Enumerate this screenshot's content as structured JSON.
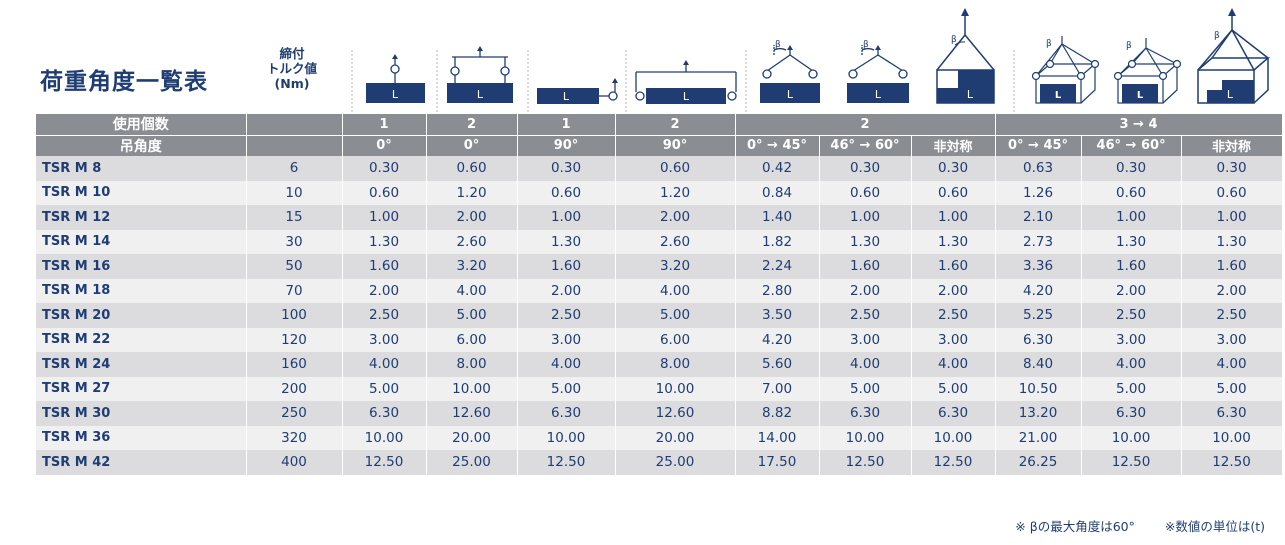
{
  "title": "荷重角度一覧表",
  "torque_header": {
    "line1": "締付",
    "line2": "トルク値",
    "line3": "(Nm)"
  },
  "icon_labels": {
    "load": "L",
    "angle": "β"
  },
  "header_count": {
    "label": "使用個数",
    "groups": [
      "1",
      "2",
      "1",
      "2",
      "2",
      "3 → 4"
    ]
  },
  "header_angle": {
    "label": "吊角度",
    "cols": [
      "0°",
      "0°",
      "90°",
      "90°",
      "0° → 45°",
      "46° → 60°",
      "非対称",
      "0° → 45°",
      "46° → 60°",
      "非対称"
    ]
  },
  "rows": [
    {
      "name": "TSR M 8",
      "torque": "6",
      "v": [
        "0.30",
        "0.60",
        "0.30",
        "0.60",
        "0.42",
        "0.30",
        "0.30",
        "0.63",
        "0.30",
        "0.30"
      ]
    },
    {
      "name": "TSR M 10",
      "torque": "10",
      "v": [
        "0.60",
        "1.20",
        "0.60",
        "1.20",
        "0.84",
        "0.60",
        "0.60",
        "1.26",
        "0.60",
        "0.60"
      ]
    },
    {
      "name": "TSR M 12",
      "torque": "15",
      "v": [
        "1.00",
        "2.00",
        "1.00",
        "2.00",
        "1.40",
        "1.00",
        "1.00",
        "2.10",
        "1.00",
        "1.00"
      ]
    },
    {
      "name": "TSR M 14",
      "torque": "30",
      "v": [
        "1.30",
        "2.60",
        "1.30",
        "2.60",
        "1.82",
        "1.30",
        "1.30",
        "2.73",
        "1.30",
        "1.30"
      ]
    },
    {
      "name": "TSR M 16",
      "torque": "50",
      "v": [
        "1.60",
        "3.20",
        "1.60",
        "3.20",
        "2.24",
        "1.60",
        "1.60",
        "3.36",
        "1.60",
        "1.60"
      ]
    },
    {
      "name": "TSR M 18",
      "torque": "70",
      "v": [
        "2.00",
        "4.00",
        "2.00",
        "4.00",
        "2.80",
        "2.00",
        "2.00",
        "4.20",
        "2.00",
        "2.00"
      ]
    },
    {
      "name": "TSR M 20",
      "torque": "100",
      "v": [
        "2.50",
        "5.00",
        "2.50",
        "5.00",
        "3.50",
        "2.50",
        "2.50",
        "5.25",
        "2.50",
        "2.50"
      ]
    },
    {
      "name": "TSR M 22",
      "torque": "120",
      "v": [
        "3.00",
        "6.00",
        "3.00",
        "6.00",
        "4.20",
        "3.00",
        "3.00",
        "6.30",
        "3.00",
        "3.00"
      ]
    },
    {
      "name": "TSR M 24",
      "torque": "160",
      "v": [
        "4.00",
        "8.00",
        "4.00",
        "8.00",
        "5.60",
        "4.00",
        "4.00",
        "8.40",
        "4.00",
        "4.00"
      ]
    },
    {
      "name": "TSR M 27",
      "torque": "200",
      "v": [
        "5.00",
        "10.00",
        "5.00",
        "10.00",
        "7.00",
        "5.00",
        "5.00",
        "10.50",
        "5.00",
        "5.00"
      ]
    },
    {
      "name": "TSR M 30",
      "torque": "250",
      "v": [
        "6.30",
        "12.60",
        "6.30",
        "12.60",
        "8.82",
        "6.30",
        "6.30",
        "13.20",
        "6.30",
        "6.30"
      ]
    },
    {
      "name": "TSR M 36",
      "torque": "320",
      "v": [
        "10.00",
        "20.00",
        "10.00",
        "20.00",
        "14.00",
        "10.00",
        "10.00",
        "21.00",
        "10.00",
        "10.00"
      ]
    },
    {
      "name": "TSR M 42",
      "torque": "400",
      "v": [
        "12.50",
        "25.00",
        "12.50",
        "25.00",
        "17.50",
        "12.50",
        "12.50",
        "26.25",
        "12.50",
        "12.50"
      ]
    }
  ],
  "notes": {
    "beta": "※ βの最大角度は60°",
    "unit": "※数値の単位は(t)"
  },
  "colors": {
    "navy": "#1f3d73",
    "header_gray": "#8a8d92",
    "row_dark": "#dcdcde",
    "row_light": "#f0f0f1"
  }
}
